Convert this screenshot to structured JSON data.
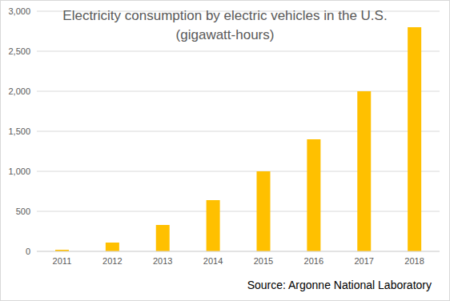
{
  "chart_data": {
    "type": "bar",
    "title": "Electricity consumption by electric vehicles in the U.S.",
    "subtitle": "(gigawatt-hours)",
    "annotation": "Source: Argonne National Laboratory",
    "categories": [
      "2011",
      "2012",
      "2013",
      "2014",
      "2015",
      "2016",
      "2017",
      "2018"
    ],
    "values": [
      20,
      110,
      330,
      640,
      1000,
      1400,
      2000,
      2800
    ],
    "color": "#ffc000",
    "ylim": [
      0,
      3000
    ],
    "yticks": [
      0,
      500,
      {
        "value": 1000,
        "label": "1,000"
      },
      {
        "value": 1500,
        "label": "1,500"
      },
      {
        "value": 2000,
        "label": "2,000"
      },
      {
        "value": 2500,
        "label": "2,500"
      },
      {
        "value": 3000,
        "label": "3,000"
      }
    ],
    "grid": true
  }
}
